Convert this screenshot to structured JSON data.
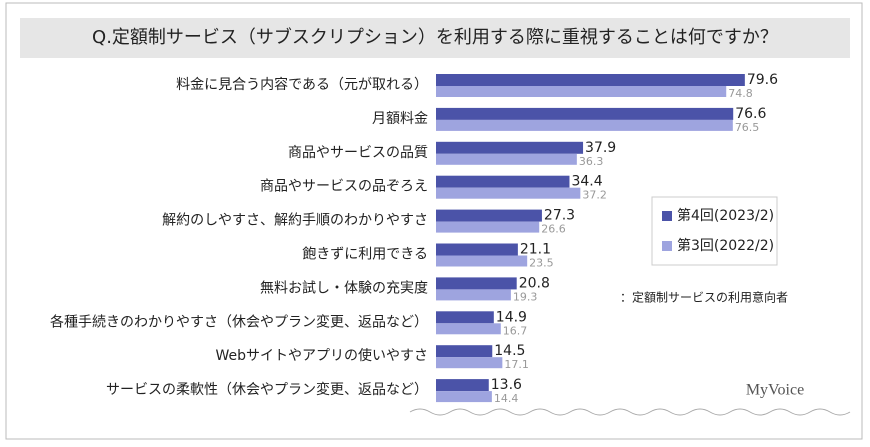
{
  "chart_data": {
    "type": "bar",
    "orientation": "horizontal",
    "title": "Q.定額制サービス（サブスクリプション）を利用する際に重視することは何ですか？",
    "categories": [
      "料金に見合う内容である（元が取れる）",
      "月額料金",
      "商品やサービスの品質",
      "商品やサービスの品ぞろえ",
      "解約のしやすさ、解約手順のわかりやすさ",
      "飽きずに利用できる",
      "無料お試し・体験の充実度",
      "各種手続きのわかりやすさ（休会やプラン変更、返品など）",
      "Webサイトやアプリの使いやすさ",
      "サービスの柔軟性（休会やプラン変更、返品など）"
    ],
    "series": [
      {
        "name": "第4回(2023/2)",
        "color": "#4b53a8",
        "values": [
          79.6,
          76.6,
          37.9,
          34.4,
          27.3,
          21.1,
          20.8,
          14.9,
          14.5,
          13.6
        ]
      },
      {
        "name": "第3回(2022/2)",
        "color": "#9ea4df",
        "values": [
          74.8,
          76.5,
          36.3,
          37.2,
          26.6,
          23.5,
          19.3,
          16.7,
          17.1,
          14.4
        ]
      }
    ],
    "note": "：定額制サービスの利用意向者",
    "source": "MyVoice"
  }
}
